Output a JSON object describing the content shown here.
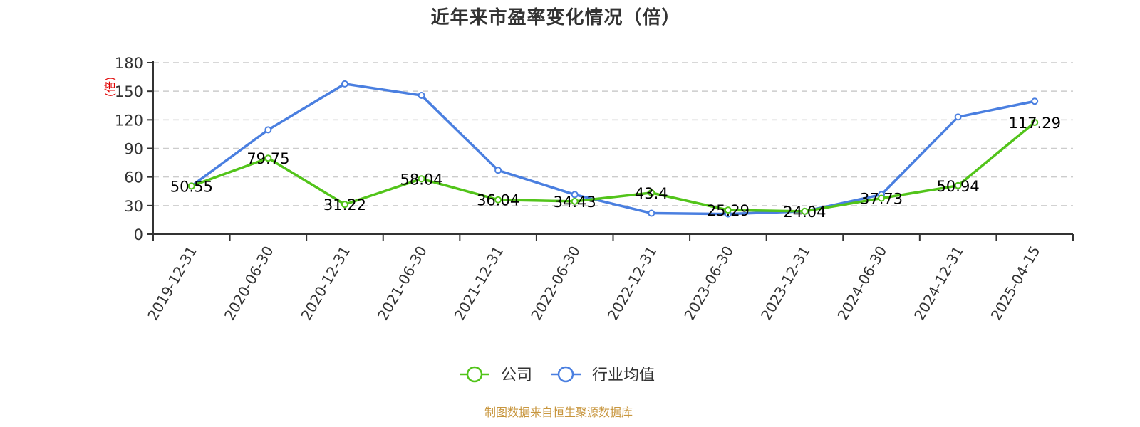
{
  "title": "近年来市盈率变化情况（倍）",
  "source_text": "制图数据来自恒生聚源数据库",
  "colors": {
    "company": "#52c41a",
    "industry": "#4a7fe0",
    "grid": "#cccccc",
    "axis": "#333333",
    "source": "#c8963e",
    "yunit": "#e00000"
  },
  "legend": [
    {
      "name": "公司",
      "color": "#52c41a"
    },
    {
      "name": "行业均值",
      "color": "#4a7fe0"
    }
  ],
  "chart_data": {
    "type": "line",
    "title": "近年来市盈率变化情况（倍）",
    "xlabel": "",
    "ylabel": "(倍)",
    "ylim": [
      0,
      180
    ],
    "yticks": [
      0,
      30,
      60,
      90,
      120,
      150,
      180
    ],
    "grid": true,
    "legend_position": "bottom",
    "categories": [
      "2019-12-31",
      "2020-06-30",
      "2020-12-31",
      "2021-06-30",
      "2021-12-31",
      "2022-06-30",
      "2022-12-31",
      "2023-06-30",
      "2023-12-31",
      "2024-06-30",
      "2024-12-31",
      "2025-04-15"
    ],
    "series": [
      {
        "name": "公司",
        "values": [
          50.55,
          79.75,
          31.22,
          58.04,
          36.04,
          34.43,
          43.4,
          25.29,
          24.04,
          37.73,
          50.94,
          117.29
        ],
        "labeled": true
      },
      {
        "name": "行业均值",
        "values": [
          50.5,
          109.5,
          157.7,
          145.6,
          67.0,
          41.5,
          22.0,
          21.2,
          24.0,
          41.5,
          123.0,
          139.5
        ],
        "labeled": false
      }
    ]
  }
}
